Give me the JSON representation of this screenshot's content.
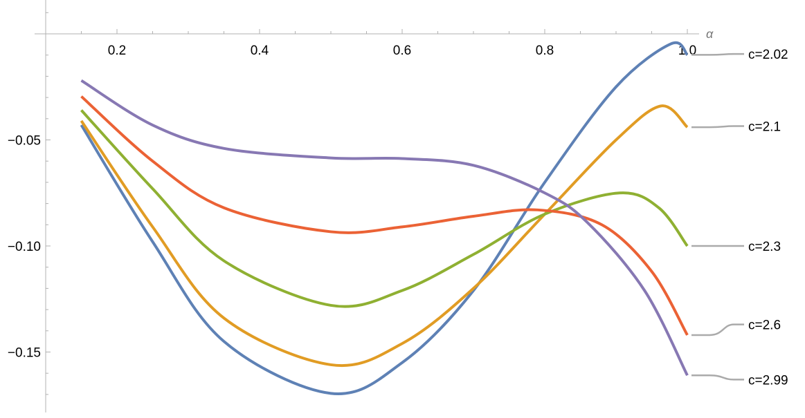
{
  "chart_data": {
    "type": "line",
    "title": "",
    "xlabel": "α",
    "ylabel": "",
    "xlim": [
      0.1,
      1.0
    ],
    "ylim": [
      -0.178,
      0.015
    ],
    "grid": false,
    "x_ticks": [
      0.2,
      0.4,
      0.6,
      0.8,
      1.0
    ],
    "x_tick_labels": [
      "0.2",
      "0.4",
      "0.6",
      "0.8",
      "1.0"
    ],
    "y_ticks": [
      -0.05,
      -0.1,
      -0.15
    ],
    "y_tick_labels": [
      "-0.05",
      "-0.10",
      "-0.15"
    ],
    "legend_placement": "right (callout labels at curve ends)",
    "series": [
      {
        "name": "c=2.02",
        "color": "#5e81b5",
        "x": [
          0.15,
          0.25,
          0.35,
          0.5,
          0.6,
          0.7,
          0.8,
          0.9,
          0.977,
          1.0
        ],
        "y": [
          -0.043,
          -0.098,
          -0.145,
          -0.1695,
          -0.155,
          -0.121,
          -0.07,
          -0.025,
          -0.0047,
          -0.0099
        ]
      },
      {
        "name": "c=2.1",
        "color": "#e19c24",
        "x": [
          0.15,
          0.25,
          0.35,
          0.5,
          0.6,
          0.7,
          0.8,
          0.9,
          0.963,
          1.0
        ],
        "y": [
          -0.041,
          -0.091,
          -0.134,
          -0.156,
          -0.146,
          -0.12,
          -0.085,
          -0.05,
          -0.034,
          -0.044
        ]
      },
      {
        "name": "c=2.3",
        "color": "#8fb032",
        "x": [
          0.15,
          0.25,
          0.35,
          0.5,
          0.6,
          0.7,
          0.8,
          0.905,
          0.96,
          1.0
        ],
        "y": [
          -0.036,
          -0.073,
          -0.107,
          -0.128,
          -0.121,
          -0.104,
          -0.085,
          -0.075,
          -0.082,
          -0.1
        ]
      },
      {
        "name": "c=2.6",
        "color": "#eb6235",
        "x": [
          0.15,
          0.25,
          0.35,
          0.5,
          0.6,
          0.7,
          0.79,
          0.88,
          0.95,
          1.0
        ],
        "y": [
          -0.0295,
          -0.06,
          -0.082,
          -0.0933,
          -0.091,
          -0.086,
          -0.083,
          -0.09,
          -0.112,
          -0.142
        ]
      },
      {
        "name": "c=2.99",
        "color": "#8778b3",
        "x": [
          0.15,
          0.25,
          0.35,
          0.5,
          0.6,
          0.7,
          0.8,
          0.86,
          0.94,
          1.0
        ],
        "y": [
          -0.022,
          -0.043,
          -0.054,
          -0.0585,
          -0.0588,
          -0.062,
          -0.075,
          -0.089,
          -0.121,
          -0.161
        ]
      }
    ],
    "label_positions_y": [
      -0.0095,
      -0.0435,
      -0.1,
      -0.137,
      -0.163
    ]
  }
}
